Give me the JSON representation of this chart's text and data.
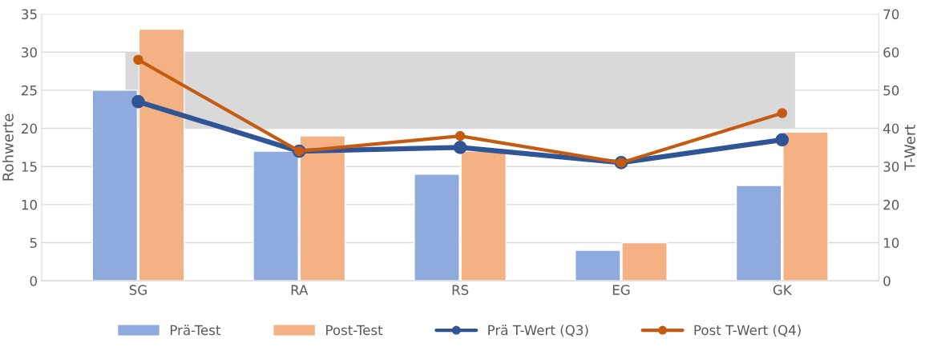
{
  "chart_data": {
    "type": "bar",
    "categories": [
      "SG",
      "RA",
      "RS",
      "EG",
      "GK"
    ],
    "ylabel": "Rohwerte",
    "y2label": "T-Wert",
    "ylim": [
      0,
      35
    ],
    "yticks": [
      0,
      5,
      10,
      15,
      20,
      25,
      30,
      35
    ],
    "y2lim": [
      0,
      70
    ],
    "y2ticks": [
      0,
      10,
      20,
      30,
      40,
      50,
      60,
      70
    ],
    "series": [
      {
        "name": "Prä-Test",
        "color": "#8faadc",
        "values": [
          25,
          17,
          14,
          4,
          12.5
        ]
      },
      {
        "name": "Post-Test",
        "color": "#f4b183",
        "values": [
          33,
          19,
          17,
          5,
          19.5
        ]
      },
      {
        "name": "Prä T-Wert (Q3)",
        "type": "line",
        "axis": "y2",
        "color": "#2f5597",
        "marker": "circle",
        "values": [
          47,
          34,
          35,
          31,
          37
        ]
      },
      {
        "name": "Post T-Wert (Q4)",
        "type": "line",
        "axis": "y2",
        "color": "#c55a11",
        "marker": "circle",
        "values": [
          58,
          34,
          38,
          31,
          44
        ]
      }
    ],
    "bands": [
      {
        "axis": "y2",
        "from": 40,
        "to": 60,
        "color": "#d9d9d9"
      }
    ],
    "grid": "y",
    "legend": "bottom"
  }
}
